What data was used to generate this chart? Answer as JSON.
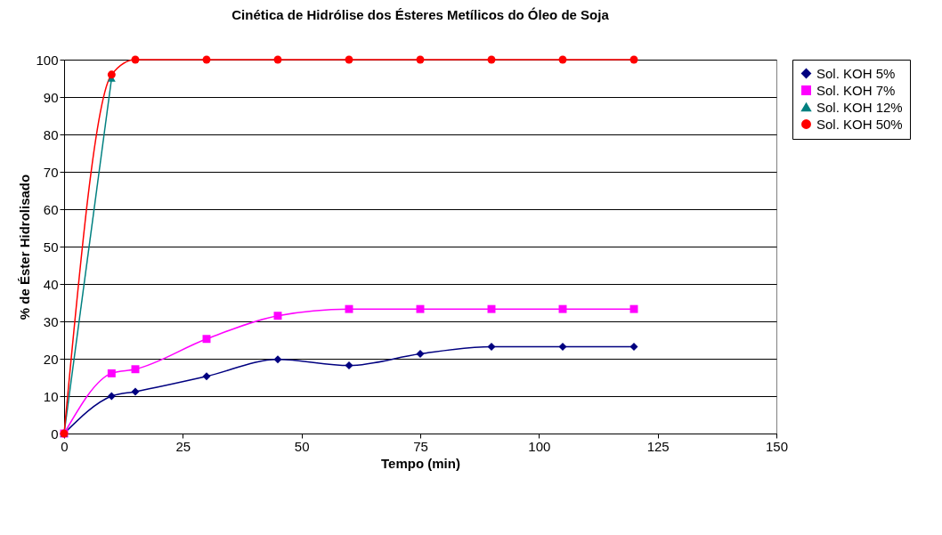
{
  "chart_data": {
    "type": "line",
    "title": "Cinética de Hidrólise dos Ésteres Metílicos do Óleo de Soja",
    "xlabel": "Tempo (min)",
    "ylabel": "% de Éster Hidrolisado",
    "x": [
      0,
      10,
      15,
      30,
      45,
      60,
      75,
      90,
      105,
      120
    ],
    "series": [
      {
        "name": "Sol. KOH 5%",
        "color": "#000080",
        "marker": "diamond",
        "values": [
          0,
          10,
          11.2,
          15.3,
          19.8,
          18.2,
          21.3,
          23.2,
          23.2,
          23.2
        ]
      },
      {
        "name": "Sol. KOH 7%",
        "color": "#ff00ff",
        "marker": "square",
        "values": [
          0,
          16.1,
          17.2,
          25.3,
          31.5,
          33.3,
          33.3,
          33.3,
          33.3,
          33.3
        ]
      },
      {
        "name": "Sol. KOH 12%",
        "color": "#008080",
        "marker": "triangle",
        "values": [
          0,
          95,
          null,
          null,
          null,
          null,
          null,
          null,
          null,
          null
        ]
      },
      {
        "name": "Sol. KOH 50%",
        "color": "#ff0000",
        "marker": "circle",
        "values": [
          0,
          96,
          100,
          100,
          100,
          100,
          100,
          100,
          100,
          100
        ]
      }
    ],
    "xlim": [
      0,
      150
    ],
    "xticks": [
      0,
      25,
      50,
      75,
      100,
      125,
      150
    ],
    "ylim": [
      0,
      100
    ],
    "yticks": [
      0,
      10,
      20,
      30,
      40,
      50,
      60,
      70,
      80,
      90,
      100
    ],
    "grid": "y",
    "legend": "right"
  }
}
